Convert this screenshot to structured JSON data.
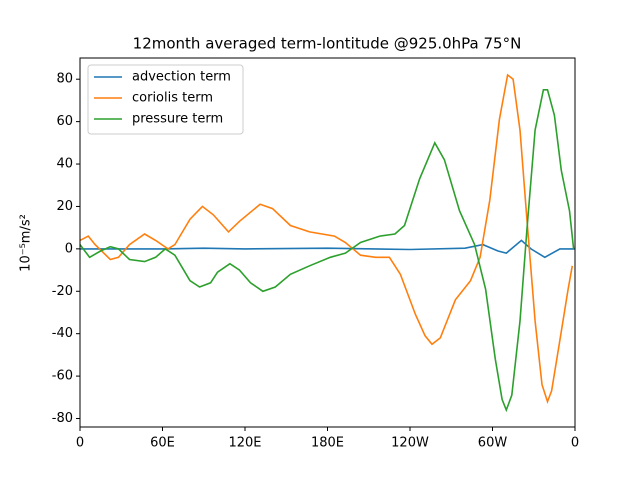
{
  "chart_data": {
    "type": "line",
    "title": "12month averaged term-lontitude @925.0hPa 75°N",
    "ylabel": "10⁻⁵m/s²",
    "xlim": [
      0,
      360
    ],
    "xticks": [
      0,
      {
        "value": 60,
        "label": "60E"
      },
      {
        "value": 120,
        "label": "120E"
      },
      {
        "value": 180,
        "label": "180E"
      },
      {
        "value": 240,
        "label": "120W"
      },
      {
        "value": 300,
        "label": "60W"
      },
      {
        "value": 360,
        "label": "0"
      }
    ],
    "ylim": [
      -84,
      90
    ],
    "yticks": [
      -80,
      -60,
      -40,
      -20,
      0,
      20,
      40,
      60,
      80
    ],
    "grid": false,
    "legend": "upper left",
    "series": [
      {
        "name": "advection term",
        "color": "#1f77b4",
        "x": [
          0,
          60,
          90,
          120,
          180,
          240,
          280,
          293,
          304,
          310,
          321,
          328,
          338,
          349,
          360
        ],
        "values": [
          0,
          0,
          0.3,
          0,
          0.3,
          -0.3,
          0.3,
          2,
          -1,
          -2,
          4,
          0,
          -4,
          0,
          0
        ]
      },
      {
        "name": "coriolis term",
        "color": "#ff7f0e",
        "x": [
          0,
          6,
          11,
          22,
          28,
          36,
          47,
          55,
          64,
          69,
          80,
          89,
          97,
          108,
          116,
          131,
          140,
          153,
          167,
          185,
          193,
          204,
          215,
          225,
          233,
          244,
          251,
          256,
          262,
          273,
          284,
          291,
          298,
          305,
          311,
          315,
          320,
          325,
          331,
          336,
          340,
          343,
          349,
          355,
          358
        ],
        "values": [
          4,
          6,
          2,
          -5,
          -4,
          2,
          7,
          4,
          0,
          2,
          14,
          20,
          16,
          8,
          13,
          21,
          19,
          11,
          8,
          6,
          3,
          -3,
          -4,
          -4,
          -12,
          -31,
          -41,
          -45,
          -42,
          -24,
          -15,
          -4,
          23,
          61,
          82,
          80,
          56,
          14,
          -34,
          -64,
          -72,
          -67,
          -43,
          -19,
          -8
        ]
      },
      {
        "name": "pressure term",
        "color": "#2ca02c",
        "x": [
          0,
          7,
          15,
          22,
          28,
          36,
          47,
          55,
          62,
          69,
          80,
          87,
          95,
          100,
          109,
          116,
          124,
          133,
          142,
          153,
          167,
          182,
          193,
          204,
          218,
          229,
          236,
          247,
          258,
          265,
          276,
          287,
          295,
          302,
          307,
          310,
          314,
          320,
          325,
          331,
          337,
          340,
          345,
          350,
          356,
          359
        ],
        "values": [
          2,
          -4,
          -1,
          1,
          0,
          -5,
          -6,
          -4,
          0,
          -3,
          -15,
          -18,
          -16,
          -11,
          -7,
          -10,
          -16,
          -20,
          -18,
          -12,
          -8,
          -4,
          -2,
          3,
          6,
          7,
          11,
          33,
          50,
          42,
          18,
          2,
          -19,
          -52,
          -71,
          -76,
          -69,
          -34,
          9,
          56,
          75,
          75,
          63,
          37,
          18,
          0
        ]
      }
    ]
  }
}
